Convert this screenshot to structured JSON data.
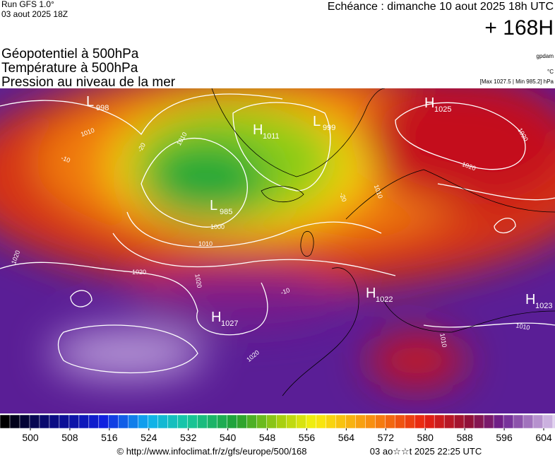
{
  "header": {
    "run": "Run GFS 1.0°",
    "date": "03 aout 2025 18Z",
    "echeance": "Echéance : dimanche 10 aout 2025 18h UTC",
    "lead": "+ 168H"
  },
  "titles": [
    "Géopotentiel à 500hPa",
    "Température à 500hPa",
    "Pression au niveau de la mer"
  ],
  "units": [
    "gpdam",
    "°C",
    "[Max 1027.5 | Min 985.2] hPa"
  ],
  "centers": [
    {
      "letter": "L",
      "value": "998"
    },
    {
      "letter": "H",
      "value": "1011"
    },
    {
      "letter": "L",
      "value": "999"
    },
    {
      "letter": "H",
      "value": "1025"
    },
    {
      "letter": "L",
      "value": "985"
    },
    {
      "letter": "H",
      "value": "1022"
    },
    {
      "letter": "H",
      "value": "1023"
    },
    {
      "letter": "H",
      "value": "1027"
    }
  ],
  "contour_labels": [
    "1010",
    "1010",
    "1000",
    "1010",
    "1020",
    "1020",
    "1020",
    "1020",
    "1020",
    "1020",
    "1010",
    "1010",
    "1010",
    "-20",
    "-20",
    "-10",
    "-10"
  ],
  "colorbar": {
    "ticks": [
      500,
      508,
      516,
      524,
      532,
      540,
      548,
      556,
      564,
      572,
      580,
      588,
      596,
      604
    ]
  },
  "footer": {
    "url": "© http://www.infoclimat.fr/z/gfs/europe/500/168",
    "timestamp": "03 ao☆☆t 2025 22:25 UTC"
  }
}
